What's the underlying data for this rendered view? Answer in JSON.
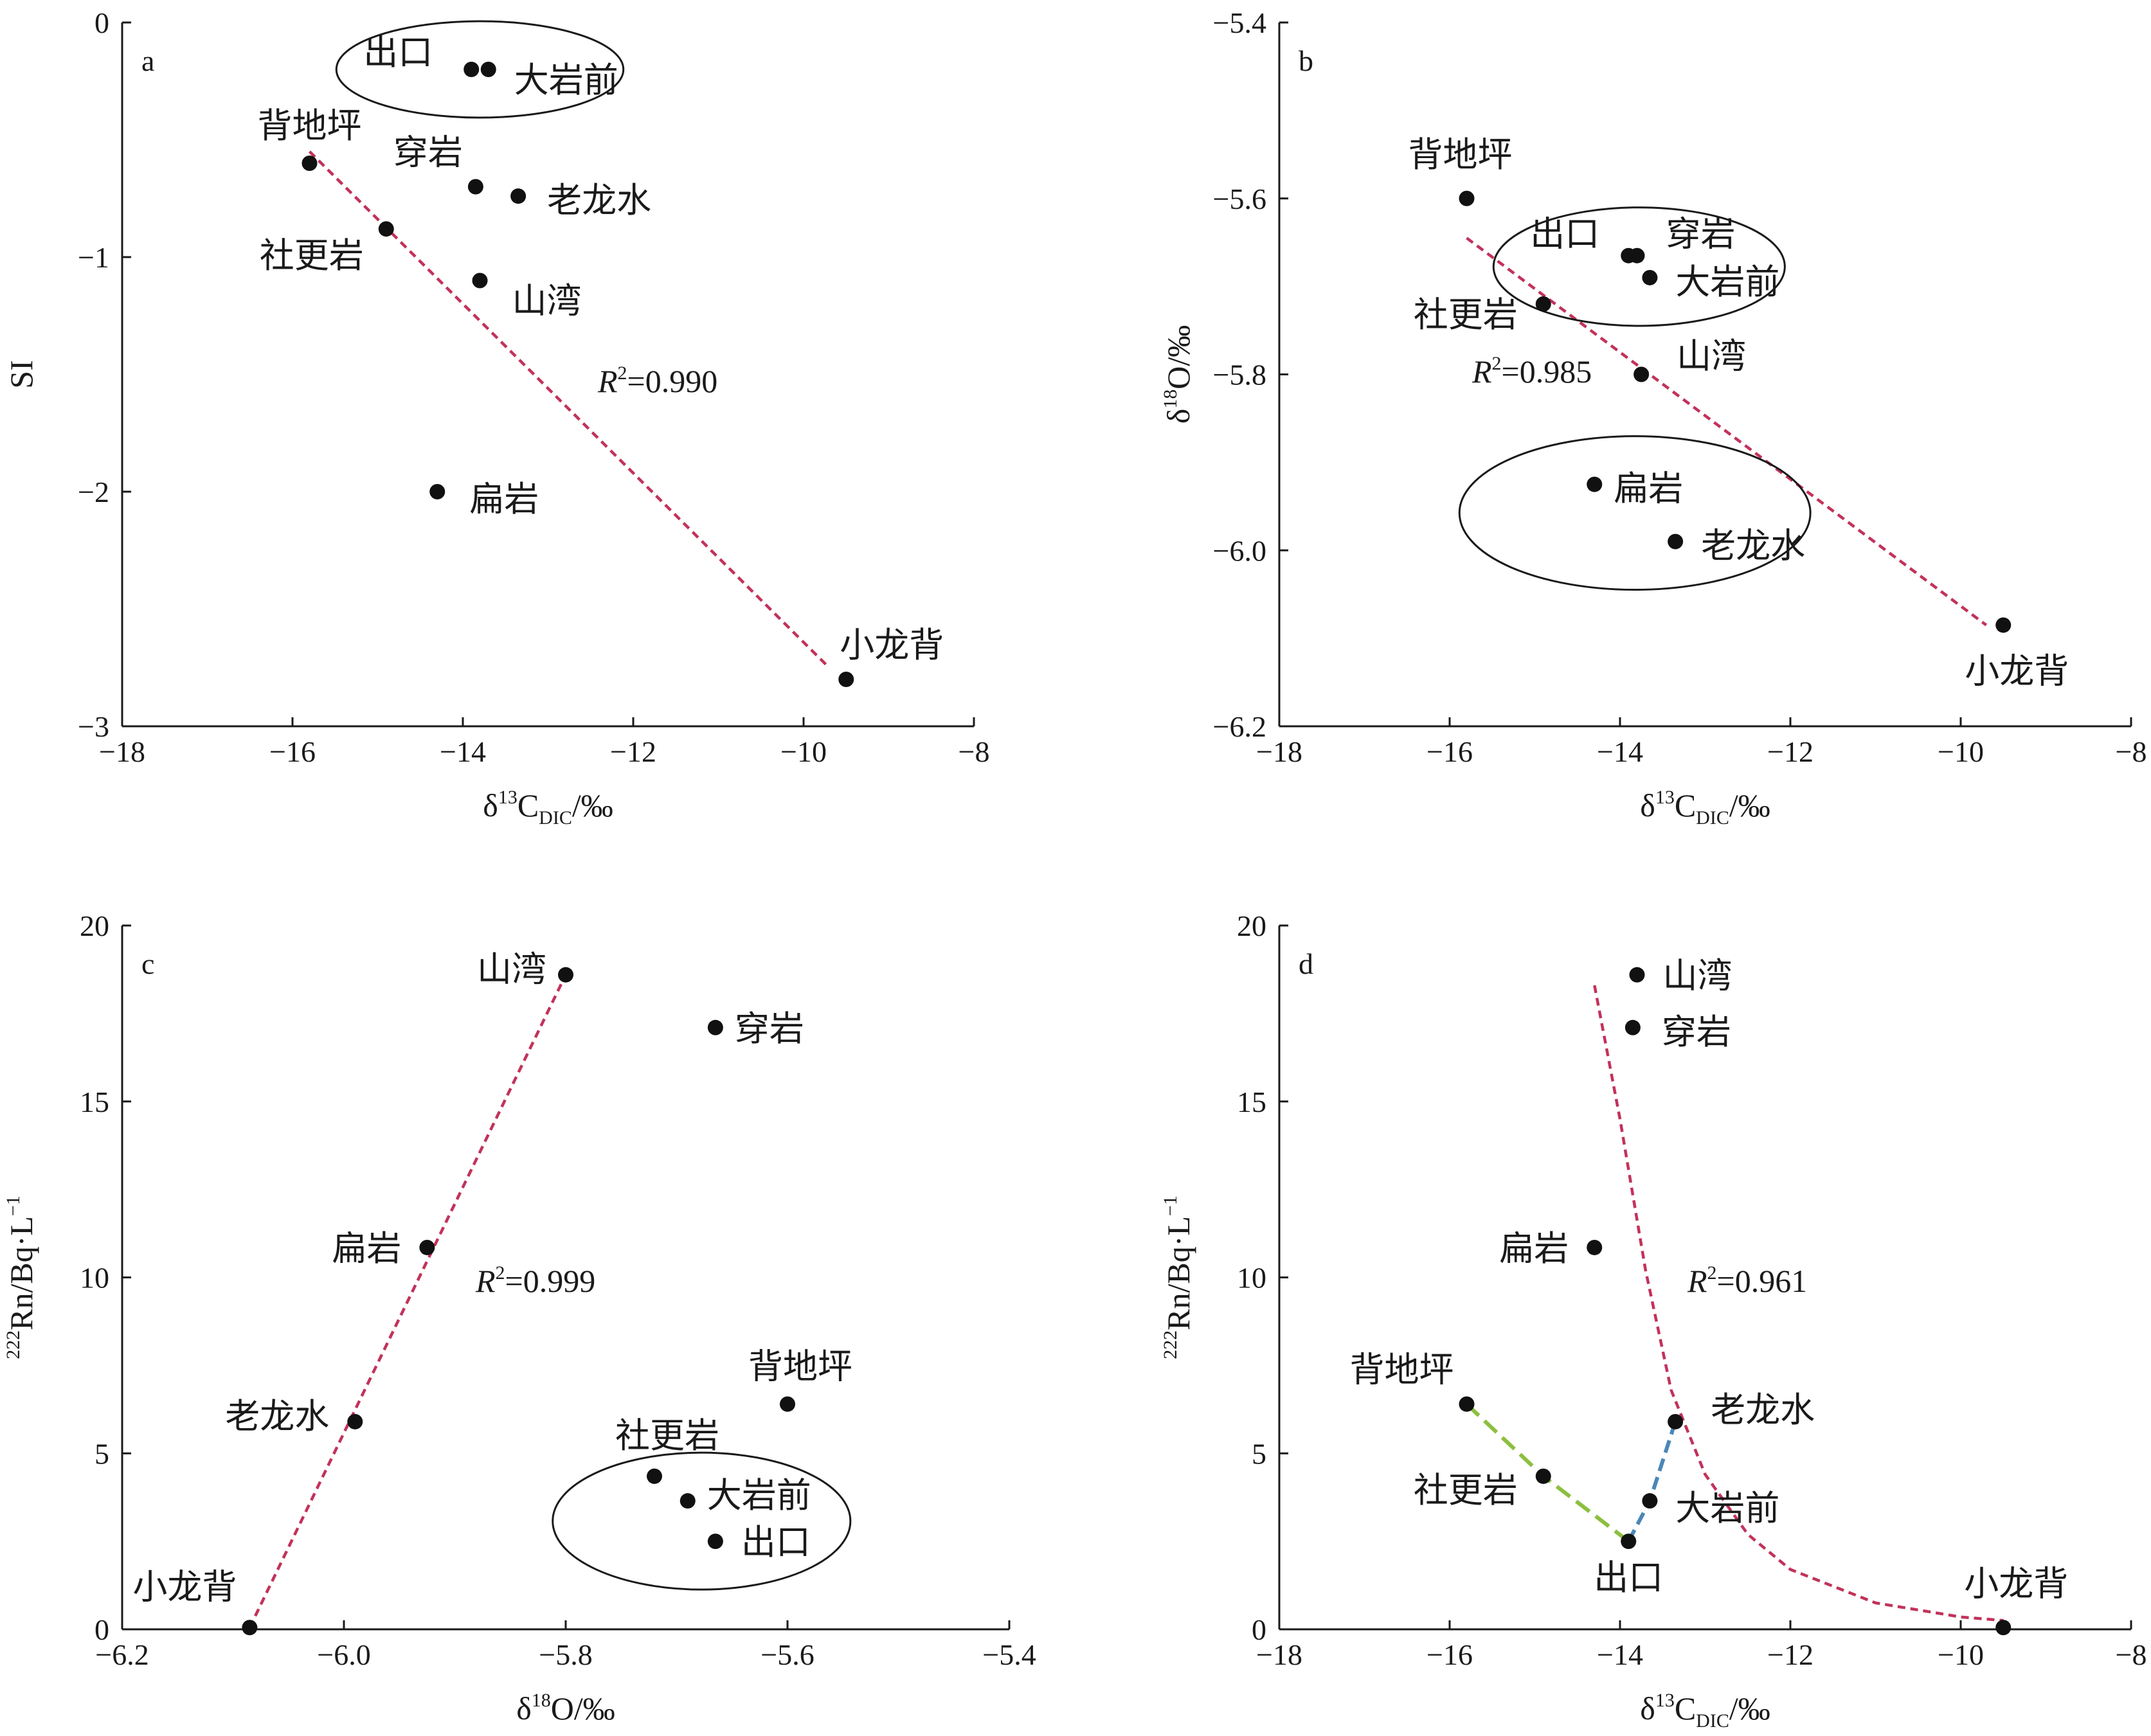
{
  "colors": {
    "axis": "#1a1a1a",
    "point": "#111111",
    "fit_line": "#c2325a",
    "green_line": "#8cbf3f",
    "blue_line": "#4a87b8",
    "ellipse": "#1a1a1a"
  },
  "chart_data": [
    {
      "panel": "a",
      "type": "scatter",
      "xlabel_main": "δ",
      "xlabel_sup": "13",
      "xlabel_mid": "C",
      "xlabel_sub": "DIC",
      "xlabel_end": "/‰",
      "ylabel": "SI",
      "xlim": [
        -18,
        -8
      ],
      "ylim": [
        -3,
        0
      ],
      "xticks": [
        -18,
        -16,
        -14,
        -12,
        -10,
        -8
      ],
      "yticks": [
        -3,
        -2,
        -1,
        0
      ],
      "xtick_labels": [
        "−18",
        "−16",
        "−14",
        "−12",
        "−10",
        "−8"
      ],
      "ytick_labels": [
        "−3",
        "−2",
        "−1",
        "0"
      ],
      "points": [
        {
          "name": "出口",
          "x": -13.9,
          "y": -0.2
        },
        {
          "name": "大岩前",
          "x": -13.7,
          "y": -0.2
        },
        {
          "name": "背地坪",
          "x": -15.8,
          "y": -0.6
        },
        {
          "name": "穿岩",
          "x": -13.85,
          "y": -0.7
        },
        {
          "name": "老龙水",
          "x": -13.35,
          "y": -0.74
        },
        {
          "name": "社更岩",
          "x": -14.9,
          "y": -0.88
        },
        {
          "name": "山湾",
          "x": -13.8,
          "y": -1.1
        },
        {
          "name": "扁岩",
          "x": -14.3,
          "y": -2.0
        },
        {
          "name": "小龙背",
          "x": -9.5,
          "y": -2.8
        }
      ],
      "fit": {
        "r2_label": "R",
        "r2_sup": "2",
        "r2_value": "=0.990",
        "from": [
          -15.8,
          -0.55
        ],
        "to": [
          -9.7,
          -2.75
        ]
      }
    },
    {
      "panel": "b",
      "type": "scatter",
      "xlabel_main": "δ",
      "xlabel_sup": "13",
      "xlabel_mid": "C",
      "xlabel_sub": "DIC",
      "xlabel_end": "/‰",
      "ylabel_main": "δ",
      "ylabel_sup": "18",
      "ylabel_end": "O/‰",
      "xlim": [
        -18,
        -8
      ],
      "ylim": [
        -6.2,
        -5.4
      ],
      "xticks": [
        -18,
        -16,
        -14,
        -12,
        -10,
        -8
      ],
      "yticks": [
        -6.2,
        -6.0,
        -5.8,
        -5.6,
        -5.4
      ],
      "xtick_labels": [
        "−18",
        "−16",
        "−14",
        "−12",
        "−10",
        "−8"
      ],
      "ytick_labels": [
        "−6.2",
        "−6.0",
        "−5.8",
        "−5.6",
        "−5.4"
      ],
      "points": [
        {
          "name": "背地坪",
          "x": -15.8,
          "y": -5.6
        },
        {
          "name": "出口",
          "x": -13.9,
          "y": -5.665
        },
        {
          "name": "穿岩",
          "x": -13.8,
          "y": -5.665
        },
        {
          "name": "大岩前",
          "x": -13.65,
          "y": -5.69
        },
        {
          "name": "社更岩",
          "x": -14.9,
          "y": -5.72
        },
        {
          "name": "山湾",
          "x": -13.75,
          "y": -5.8
        },
        {
          "name": "扁岩",
          "x": -14.3,
          "y": -5.925
        },
        {
          "name": "老龙水",
          "x": -13.35,
          "y": -5.99
        },
        {
          "name": "小龙背",
          "x": -9.5,
          "y": -6.085
        }
      ],
      "fit": {
        "r2_label": "R",
        "r2_sup": "2",
        "r2_value": "=0.985",
        "from": [
          -15.8,
          -5.645
        ],
        "to": [
          -9.7,
          -6.085
        ]
      }
    },
    {
      "panel": "c",
      "type": "scatter",
      "xlabel_main": "δ",
      "xlabel_sup": "18",
      "xlabel_end": "O/‰",
      "ylabel_sup": "222",
      "ylabel_main": "Rn/Bq·L",
      "ylabel_sup2": "−1",
      "xlim": [
        -6.2,
        -5.4
      ],
      "ylim": [
        0,
        20
      ],
      "xticks": [
        -6.2,
        -6.0,
        -5.8,
        -5.6,
        -5.4
      ],
      "yticks": [
        0,
        5,
        10,
        15,
        20
      ],
      "xtick_labels": [
        "−6.2",
        "−6.0",
        "−5.8",
        "−5.6",
        "−5.4"
      ],
      "ytick_labels": [
        "0",
        "5",
        "10",
        "15",
        "20"
      ],
      "points": [
        {
          "name": "山湾",
          "x": -5.8,
          "y": 18.6
        },
        {
          "name": "穿岩",
          "x": -5.665,
          "y": 17.1
        },
        {
          "name": "扁岩",
          "x": -5.925,
          "y": 10.85
        },
        {
          "name": "背地坪",
          "x": -5.6,
          "y": 6.4
        },
        {
          "name": "老龙水",
          "x": -5.99,
          "y": 5.9
        },
        {
          "name": "社更岩",
          "x": -5.72,
          "y": 4.35
        },
        {
          "name": "大岩前",
          "x": -5.69,
          "y": 3.65
        },
        {
          "name": "出口",
          "x": -5.665,
          "y": 2.5
        },
        {
          "name": "小龙背",
          "x": -6.085,
          "y": 0.05
        }
      ],
      "fit": {
        "r2_label": "R",
        "r2_sup": "2",
        "r2_value": "=0.999",
        "from": [
          -6.085,
          0.05
        ],
        "to": [
          -5.8,
          18.6
        ]
      }
    },
    {
      "panel": "d",
      "type": "scatter",
      "xlabel_main": "δ",
      "xlabel_sup": "13",
      "xlabel_mid": "C",
      "xlabel_sub": "DIC",
      "xlabel_end": "/‰",
      "ylabel_sup": "222",
      "ylabel_main": "Rn/Bq·L",
      "ylabel_sup2": "−1",
      "xlim": [
        -18,
        -8
      ],
      "ylim": [
        0,
        20
      ],
      "xticks": [
        -18,
        -16,
        -14,
        -12,
        -10,
        -8
      ],
      "yticks": [
        0,
        5,
        10,
        15,
        20
      ],
      "xtick_labels": [
        "−18",
        "−16",
        "−14",
        "−12",
        "−10",
        "−8"
      ],
      "ytick_labels": [
        "0",
        "5",
        "10",
        "15",
        "20"
      ],
      "points": [
        {
          "name": "山湾",
          "x": -13.8,
          "y": 18.6
        },
        {
          "name": "穿岩",
          "x": -13.85,
          "y": 17.1
        },
        {
          "name": "扁岩",
          "x": -14.3,
          "y": 10.85
        },
        {
          "name": "背地坪",
          "x": -15.8,
          "y": 6.4
        },
        {
          "name": "老龙水",
          "x": -13.35,
          "y": 5.9
        },
        {
          "name": "社更岩",
          "x": -14.9,
          "y": 4.35
        },
        {
          "name": "大岩前",
          "x": -13.65,
          "y": 3.65
        },
        {
          "name": "出口",
          "x": -13.9,
          "y": 2.5
        },
        {
          "name": "小龙背",
          "x": -9.5,
          "y": 0.05
        }
      ],
      "fit": {
        "r2_label": "R",
        "r2_sup": "2",
        "r2_value": "=0.961"
      },
      "fit_curve": [
        [
          -14.3,
          18.3
        ],
        [
          -14.0,
          14.5
        ],
        [
          -13.7,
          10.2
        ],
        [
          -13.4,
          6.8
        ],
        [
          -13.0,
          4.4
        ],
        [
          -12.5,
          2.7
        ],
        [
          -12.0,
          1.7
        ],
        [
          -11.0,
          0.75
        ],
        [
          -10.0,
          0.35
        ],
        [
          -9.5,
          0.25
        ]
      ],
      "green_path": [
        [
          -15.8,
          6.4
        ],
        [
          -14.9,
          4.35
        ],
        [
          -13.9,
          2.5
        ]
      ],
      "blue_path": [
        [
          -13.9,
          2.5
        ],
        [
          -13.65,
          3.65
        ],
        [
          -13.35,
          5.9
        ]
      ]
    }
  ]
}
